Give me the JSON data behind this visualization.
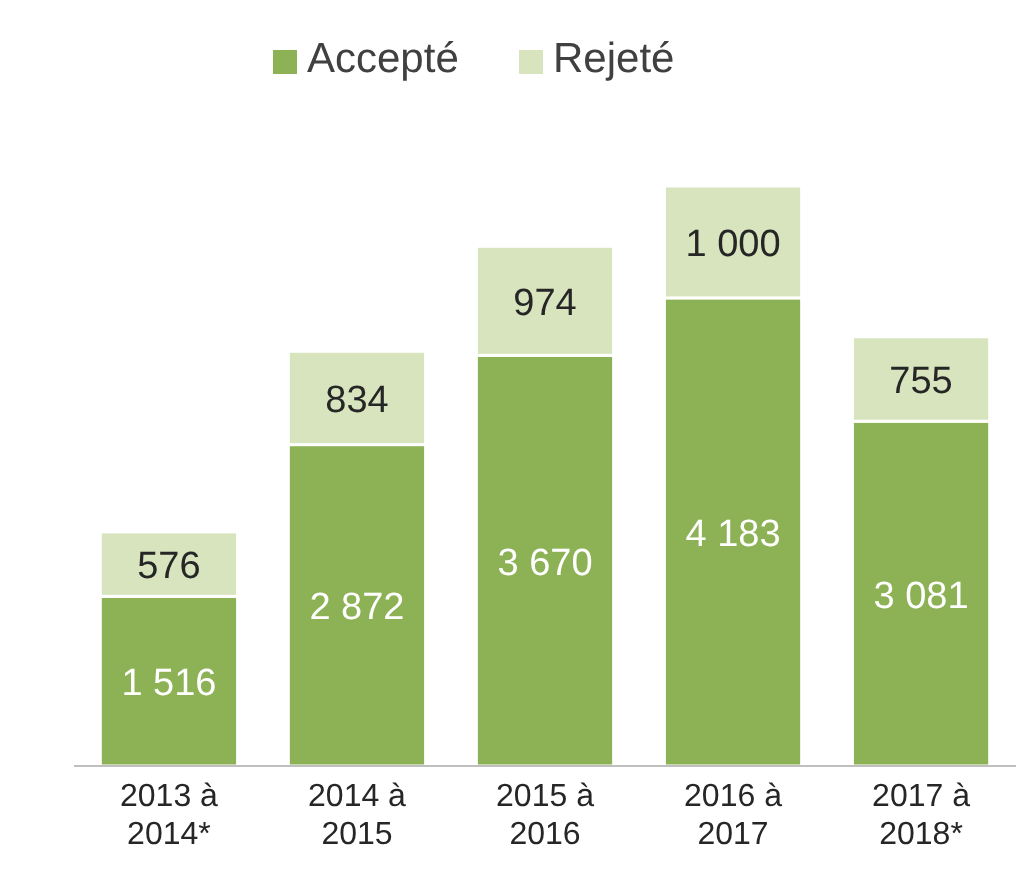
{
  "chart_data": {
    "type": "bar",
    "stacked": true,
    "legend": "top",
    "categories": [
      "2013 à 2014*",
      "2014 à 2015",
      "2015 à 2016",
      "2016 à 2017",
      "2017 à 2018*"
    ],
    "series": [
      {
        "name": "Accepté",
        "color": "#8db255",
        "values": [
          1516,
          2872,
          3670,
          4183,
          3081
        ],
        "value_labels": [
          "1 516",
          "2 872",
          "3 670",
          "4 183",
          "3 081"
        ]
      },
      {
        "name": "Rejeté",
        "color": "#d7e4bd",
        "values": [
          576,
          834,
          974,
          1000,
          755
        ],
        "value_labels": [
          "576",
          "834",
          "974",
          "1 000",
          "755"
        ]
      }
    ]
  }
}
